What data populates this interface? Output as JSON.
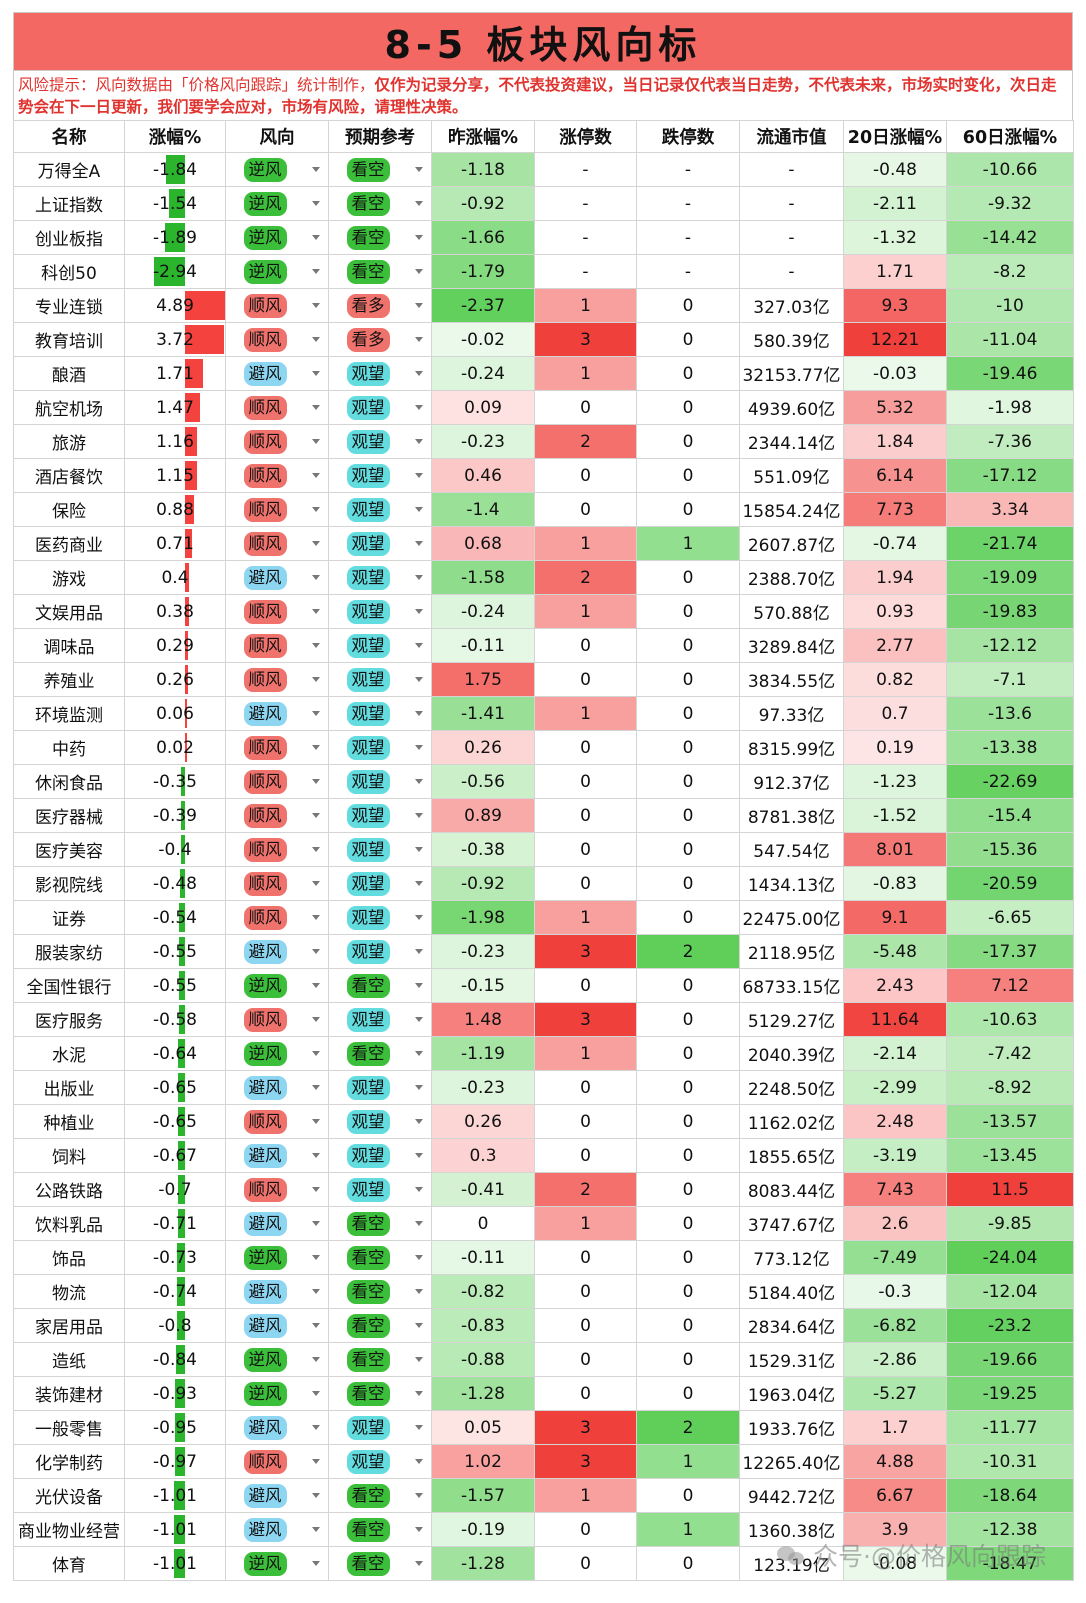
{
  "title": "8-5 板块风向标",
  "notice": {
    "part1": "风险提示：风向数据由「价格风向跟踪」统计制作，",
    "part2": "仅作为记录分享，不代表投资建议，当日记录仅代表当日走势，不代表未来，市场实时变化，次日走势会在下一日更新，我们要学会应对，市场有风险，请理性决策。"
  },
  "headers": [
    "名称",
    "涨幅%",
    "风向",
    "预期参考",
    "昨涨幅%",
    "涨停数",
    "跌停数",
    "流通市值",
    "20日涨幅%",
    "60日涨幅%"
  ],
  "watermark": "众号·@价格风向跟踪",
  "colors": {
    "wind": {
      "逆风": "#3bbf3a",
      "顺风": "#f0726c",
      "避风": "#8dd6f2"
    },
    "expect": {
      "看空": "#3bbf3a",
      "看多": "#f0726c",
      "观望": "#63dce0"
    }
  },
  "rows": [
    [
      "万得全A",
      "-1.84",
      "逆风",
      "看空",
      "-1.18",
      "-",
      "-",
      "-",
      "-0.48",
      "-10.66"
    ],
    [
      "上证指数",
      "-1.54",
      "逆风",
      "看空",
      "-0.92",
      "-",
      "-",
      "-",
      "-2.11",
      "-9.32"
    ],
    [
      "创业板指",
      "-1.89",
      "逆风",
      "看空",
      "-1.66",
      "-",
      "-",
      "-",
      "-1.32",
      "-14.42"
    ],
    [
      "科创50",
      "-2.94",
      "逆风",
      "看空",
      "-1.79",
      "-",
      "-",
      "-",
      "1.71",
      "-8.2"
    ],
    [
      "专业连锁",
      "4.89",
      "顺风",
      "看多",
      "-2.37",
      "1",
      "0",
      "327.03亿",
      "9.3",
      "-10"
    ],
    [
      "教育培训",
      "3.72",
      "顺风",
      "看多",
      "-0.02",
      "3",
      "0",
      "580.39亿",
      "12.21",
      "-11.04"
    ],
    [
      "酿酒",
      "1.71",
      "避风",
      "观望",
      "-0.24",
      "1",
      "0",
      "32153.77亿",
      "-0.03",
      "-19.46"
    ],
    [
      "航空机场",
      "1.47",
      "顺风",
      "观望",
      "0.09",
      "0",
      "0",
      "4939.60亿",
      "5.32",
      "-1.98"
    ],
    [
      "旅游",
      "1.16",
      "顺风",
      "观望",
      "-0.23",
      "2",
      "0",
      "2344.14亿",
      "1.84",
      "-7.36"
    ],
    [
      "酒店餐饮",
      "1.15",
      "顺风",
      "观望",
      "0.46",
      "0",
      "0",
      "551.09亿",
      "6.14",
      "-17.12"
    ],
    [
      "保险",
      "0.88",
      "顺风",
      "观望",
      "-1.4",
      "0",
      "0",
      "15854.24亿",
      "7.73",
      "3.34"
    ],
    [
      "医药商业",
      "0.71",
      "顺风",
      "观望",
      "0.68",
      "1",
      "1",
      "2607.87亿",
      "-0.74",
      "-21.74"
    ],
    [
      "游戏",
      "0.4",
      "避风",
      "观望",
      "-1.58",
      "2",
      "0",
      "2388.70亿",
      "1.94",
      "-19.09"
    ],
    [
      "文娱用品",
      "0.38",
      "顺风",
      "观望",
      "-0.24",
      "1",
      "0",
      "570.88亿",
      "0.93",
      "-19.83"
    ],
    [
      "调味品",
      "0.29",
      "顺风",
      "观望",
      "-0.11",
      "0",
      "0",
      "3289.84亿",
      "2.77",
      "-12.12"
    ],
    [
      "养殖业",
      "0.26",
      "顺风",
      "观望",
      "1.75",
      "0",
      "0",
      "3834.55亿",
      "0.82",
      "-7.1"
    ],
    [
      "环境监测",
      "0.06",
      "避风",
      "观望",
      "-1.41",
      "1",
      "0",
      "97.33亿",
      "0.7",
      "-13.6"
    ],
    [
      "中药",
      "0.02",
      "顺风",
      "观望",
      "0.26",
      "0",
      "0",
      "8315.99亿",
      "0.19",
      "-13.38"
    ],
    [
      "休闲食品",
      "-0.35",
      "顺风",
      "观望",
      "-0.56",
      "0",
      "0",
      "912.37亿",
      "-1.23",
      "-22.69"
    ],
    [
      "医疗器械",
      "-0.39",
      "顺风",
      "观望",
      "0.89",
      "0",
      "0",
      "8781.38亿",
      "-1.52",
      "-15.4"
    ],
    [
      "医疗美容",
      "-0.4",
      "顺风",
      "观望",
      "-0.38",
      "0",
      "0",
      "547.54亿",
      "8.01",
      "-15.36"
    ],
    [
      "影视院线",
      "-0.48",
      "顺风",
      "观望",
      "-0.92",
      "0",
      "0",
      "1434.13亿",
      "-0.83",
      "-20.59"
    ],
    [
      "证券",
      "-0.54",
      "顺风",
      "观望",
      "-1.98",
      "1",
      "0",
      "22475.00亿",
      "9.1",
      "-6.65"
    ],
    [
      "服装家纺",
      "-0.55",
      "避风",
      "观望",
      "-0.23",
      "3",
      "2",
      "2118.95亿",
      "-5.48",
      "-17.37"
    ],
    [
      "全国性银行",
      "-0.55",
      "逆风",
      "看空",
      "-0.15",
      "0",
      "0",
      "68733.15亿",
      "2.43",
      "7.12"
    ],
    [
      "医疗服务",
      "-0.58",
      "顺风",
      "观望",
      "1.48",
      "3",
      "0",
      "5129.27亿",
      "11.64",
      "-10.63"
    ],
    [
      "水泥",
      "-0.64",
      "逆风",
      "看空",
      "-1.19",
      "1",
      "0",
      "2040.39亿",
      "-2.14",
      "-7.42"
    ],
    [
      "出版业",
      "-0.65",
      "避风",
      "观望",
      "-0.23",
      "0",
      "0",
      "2248.50亿",
      "-2.99",
      "-8.92"
    ],
    [
      "种植业",
      "-0.65",
      "顺风",
      "观望",
      "0.26",
      "0",
      "0",
      "1162.02亿",
      "2.48",
      "-13.57"
    ],
    [
      "饲料",
      "-0.67",
      "避风",
      "观望",
      "0.3",
      "0",
      "0",
      "1855.65亿",
      "-3.19",
      "-13.45"
    ],
    [
      "公路铁路",
      "-0.7",
      "顺风",
      "观望",
      "-0.41",
      "2",
      "0",
      "8083.44亿",
      "7.43",
      "11.5"
    ],
    [
      "饮料乳品",
      "-0.71",
      "避风",
      "看空",
      "0",
      "1",
      "0",
      "3747.67亿",
      "2.6",
      "-9.85"
    ],
    [
      "饰品",
      "-0.73",
      "逆风",
      "看空",
      "-0.11",
      "0",
      "0",
      "773.12亿",
      "-7.49",
      "-24.04"
    ],
    [
      "物流",
      "-0.74",
      "避风",
      "看空",
      "-0.82",
      "0",
      "0",
      "5184.40亿",
      "-0.3",
      "-12.04"
    ],
    [
      "家居用品",
      "-0.8",
      "避风",
      "看空",
      "-0.83",
      "0",
      "0",
      "2834.64亿",
      "-6.82",
      "-23.2"
    ],
    [
      "造纸",
      "-0.84",
      "逆风",
      "看空",
      "-0.88",
      "0",
      "0",
      "1529.31亿",
      "-2.86",
      "-19.66"
    ],
    [
      "装饰建材",
      "-0.93",
      "逆风",
      "看空",
      "-1.28",
      "0",
      "0",
      "1963.04亿",
      "-5.27",
      "-19.25"
    ],
    [
      "一般零售",
      "-0.95",
      "避风",
      "观望",
      "0.05",
      "3",
      "2",
      "1933.76亿",
      "1.7",
      "-11.77"
    ],
    [
      "化学制药",
      "-0.97",
      "顺风",
      "观望",
      "1.02",
      "3",
      "1",
      "12265.40亿",
      "4.88",
      "-10.31"
    ],
    [
      "光伏设备",
      "-1.01",
      "避风",
      "看空",
      "-1.57",
      "1",
      "0",
      "9442.72亿",
      "6.67",
      "-18.64"
    ],
    [
      "商业物业经营",
      "-1.01",
      "避风",
      "看空",
      "-0.19",
      "0",
      "1",
      "1360.38亿",
      "3.9",
      "-12.38"
    ],
    [
      "体育",
      "-1.01",
      "逆风",
      "看空",
      "-1.28",
      "0",
      "0",
      "123.19亿",
      "-0.08",
      "-18.47"
    ]
  ]
}
